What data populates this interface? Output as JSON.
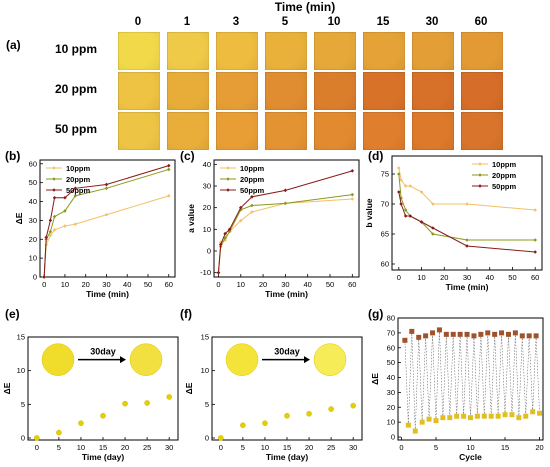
{
  "panel_a": {
    "label": "(a)",
    "title": "Time (min)",
    "times": [
      "0",
      "1",
      "3",
      "5",
      "10",
      "15",
      "30",
      "60"
    ],
    "rows": [
      {
        "label": "10 ppm",
        "colors": [
          "#f2d94a",
          "#efc948",
          "#eebc3f",
          "#e9b13a",
          "#e6a838",
          "#e5a236",
          "#e39e36",
          "#e39a34"
        ]
      },
      {
        "label": "20 ppm",
        "colors": [
          "#eec242",
          "#e8ad38",
          "#e69d36",
          "#e08c30",
          "#db7e2c",
          "#d87229",
          "#d77029",
          "#d66d29"
        ]
      },
      {
        "label": "50 ppm",
        "colors": [
          "#edc444",
          "#e9ae3a",
          "#e89e34",
          "#e49332",
          "#e28a2f",
          "#df7e2c",
          "#dc792b",
          "#d8742b"
        ]
      }
    ]
  },
  "chart_data": [
    {
      "id": "b",
      "panel_label": "(b)",
      "type": "line",
      "xlabel": "Time (min)",
      "ylabel": "ΔE",
      "xlim": [
        -2,
        63
      ],
      "ylim": [
        0,
        62
      ],
      "xticks": [
        0,
        10,
        20,
        30,
        40,
        50,
        60
      ],
      "yticks": [
        0,
        10,
        20,
        30,
        40,
        50,
        60
      ],
      "legend_position": "top-left",
      "series": [
        {
          "name": "10ppm",
          "color": "#f2c066",
          "marker": "diamond",
          "x": [
            0,
            1,
            3,
            5,
            10,
            15,
            30,
            60
          ],
          "y": [
            0,
            17,
            22,
            25,
            27,
            28,
            33,
            43
          ]
        },
        {
          "name": "20ppm",
          "color": "#8a9a1a",
          "marker": "diamond",
          "x": [
            0,
            1,
            3,
            5,
            10,
            15,
            30,
            60
          ],
          "y": [
            0,
            20,
            24,
            32,
            35,
            43,
            47,
            57
          ]
        },
        {
          "name": "50ppm",
          "color": "#8b1a1a",
          "marker": "diamond",
          "x": [
            0,
            1,
            3,
            5,
            10,
            15,
            30,
            60
          ],
          "y": [
            0,
            21,
            30,
            42,
            42,
            47,
            49,
            59
          ]
        }
      ]
    },
    {
      "id": "c",
      "panel_label": "(c)",
      "type": "line",
      "xlabel": "Time (min)",
      "ylabel": "a value",
      "xlim": [
        -2,
        63
      ],
      "ylim": [
        -12,
        42
      ],
      "xticks": [
        0,
        10,
        20,
        30,
        40,
        50,
        60
      ],
      "yticks": [
        -10,
        0,
        10,
        20,
        30,
        40
      ],
      "legend_position": "top-left",
      "series": [
        {
          "name": "10ppm",
          "color": "#f2c066",
          "marker": "diamond",
          "x": [
            0,
            1,
            3,
            5,
            10,
            15,
            30,
            60
          ],
          "y": [
            -10,
            4,
            5,
            9,
            14,
            18,
            22,
            24
          ]
        },
        {
          "name": "20ppm",
          "color": "#8a9a1a",
          "marker": "diamond",
          "x": [
            0,
            1,
            3,
            5,
            10,
            15,
            30,
            60
          ],
          "y": [
            -10,
            2,
            6,
            9,
            19,
            21,
            22,
            26
          ]
        },
        {
          "name": "50ppm",
          "color": "#8b1a1a",
          "marker": "diamond",
          "x": [
            0,
            1,
            3,
            5,
            10,
            15,
            30,
            60
          ],
          "y": [
            -10,
            3,
            8,
            10,
            20,
            25,
            28,
            37
          ]
        }
      ]
    },
    {
      "id": "d",
      "panel_label": "(d)",
      "type": "line",
      "xlabel": "Time (min)",
      "ylabel": "b value",
      "xlim": [
        -3,
        63
      ],
      "ylim": [
        59,
        78
      ],
      "xticks": [
        0,
        10,
        20,
        30,
        40,
        50,
        60
      ],
      "yticks": [
        60,
        65,
        70,
        75
      ],
      "legend_position": "top-right",
      "series": [
        {
          "name": "10ppm",
          "color": "#f2c066",
          "marker": "diamond",
          "x": [
            0,
            1,
            3,
            5,
            10,
            15,
            30,
            60
          ],
          "y": [
            76,
            74,
            73,
            73,
            72,
            70,
            70,
            69
          ]
        },
        {
          "name": "20ppm",
          "color": "#8a9a1a",
          "marker": "diamond",
          "x": [
            0,
            1,
            3,
            5,
            10,
            15,
            30,
            60
          ],
          "y": [
            75,
            71,
            69,
            68,
            67,
            65,
            64,
            64
          ]
        },
        {
          "name": "50ppm",
          "color": "#8b1a1a",
          "marker": "diamond",
          "x": [
            0,
            1,
            3,
            5,
            10,
            15,
            30,
            60
          ],
          "y": [
            72,
            70,
            68,
            68,
            67,
            66,
            63,
            62
          ]
        }
      ]
    },
    {
      "id": "e",
      "panel_label": "(e)",
      "type": "scatter",
      "xlabel": "Time (day)",
      "ylabel": "ΔE",
      "xlim": [
        -2,
        32
      ],
      "ylim": [
        -0.3,
        15
      ],
      "xticks": [
        0,
        5,
        10,
        15,
        20,
        25,
        30
      ],
      "yticks": [
        0,
        5,
        10,
        15
      ],
      "annotation": "30day",
      "series": [
        {
          "color": "#e4d000",
          "marker": "sphere",
          "x": [
            0,
            5,
            10,
            15,
            20,
            25,
            30
          ],
          "y": [
            0,
            0.8,
            2.2,
            3.3,
            5.1,
            5.2,
            6.1
          ]
        }
      ]
    },
    {
      "id": "f",
      "panel_label": "(f)",
      "type": "scatter",
      "xlabel": "Time (day)",
      "ylabel": "ΔE",
      "xlim": [
        -2,
        32
      ],
      "ylim": [
        -0.3,
        15
      ],
      "xticks": [
        0,
        5,
        10,
        15,
        20,
        25,
        30
      ],
      "yticks": [
        0,
        5,
        10,
        15
      ],
      "annotation": "30day",
      "series": [
        {
          "color": "#e4d000",
          "marker": "sphere",
          "x": [
            0,
            5,
            10,
            15,
            20,
            25,
            30
          ],
          "y": [
            0,
            1.9,
            2.2,
            3.3,
            3.6,
            4.3,
            4.8
          ]
        }
      ]
    },
    {
      "id": "g",
      "panel_label": "(g)",
      "type": "scatter",
      "xlabel": "Cycle",
      "ylabel": "ΔE",
      "xlim": [
        -0.5,
        20.5
      ],
      "ylim": [
        -2,
        80
      ],
      "xticks": [
        0,
        5,
        10,
        15,
        20
      ],
      "yticks": [
        0,
        10,
        20,
        30,
        40,
        50,
        60,
        70,
        80
      ],
      "series": [
        {
          "color": "#a0522d",
          "marker": "square",
          "x": [
            0.5,
            1.5,
            2.5,
            3.5,
            4.5,
            5.5,
            6.5,
            7.5,
            8.5,
            9.5,
            10.5,
            11.5,
            12.5,
            13.5,
            14.5,
            15.5,
            16.5,
            17.5,
            18.5,
            19.5
          ],
          "y": [
            65,
            71,
            67,
            68,
            70,
            72,
            69,
            69,
            69,
            69,
            68,
            69,
            70,
            69,
            70,
            69,
            70,
            68,
            68,
            68
          ]
        },
        {
          "color": "#e0c020",
          "marker": "square",
          "x": [
            1,
            2,
            3,
            4,
            5,
            6,
            7,
            8,
            9,
            10,
            11,
            12,
            13,
            14,
            15,
            16,
            17,
            18,
            19,
            20
          ],
          "y": [
            8,
            4,
            10,
            12,
            11,
            13,
            13,
            14,
            14,
            13,
            14,
            14,
            14,
            14,
            15,
            15,
            13,
            14,
            17,
            16
          ]
        }
      ]
    }
  ]
}
